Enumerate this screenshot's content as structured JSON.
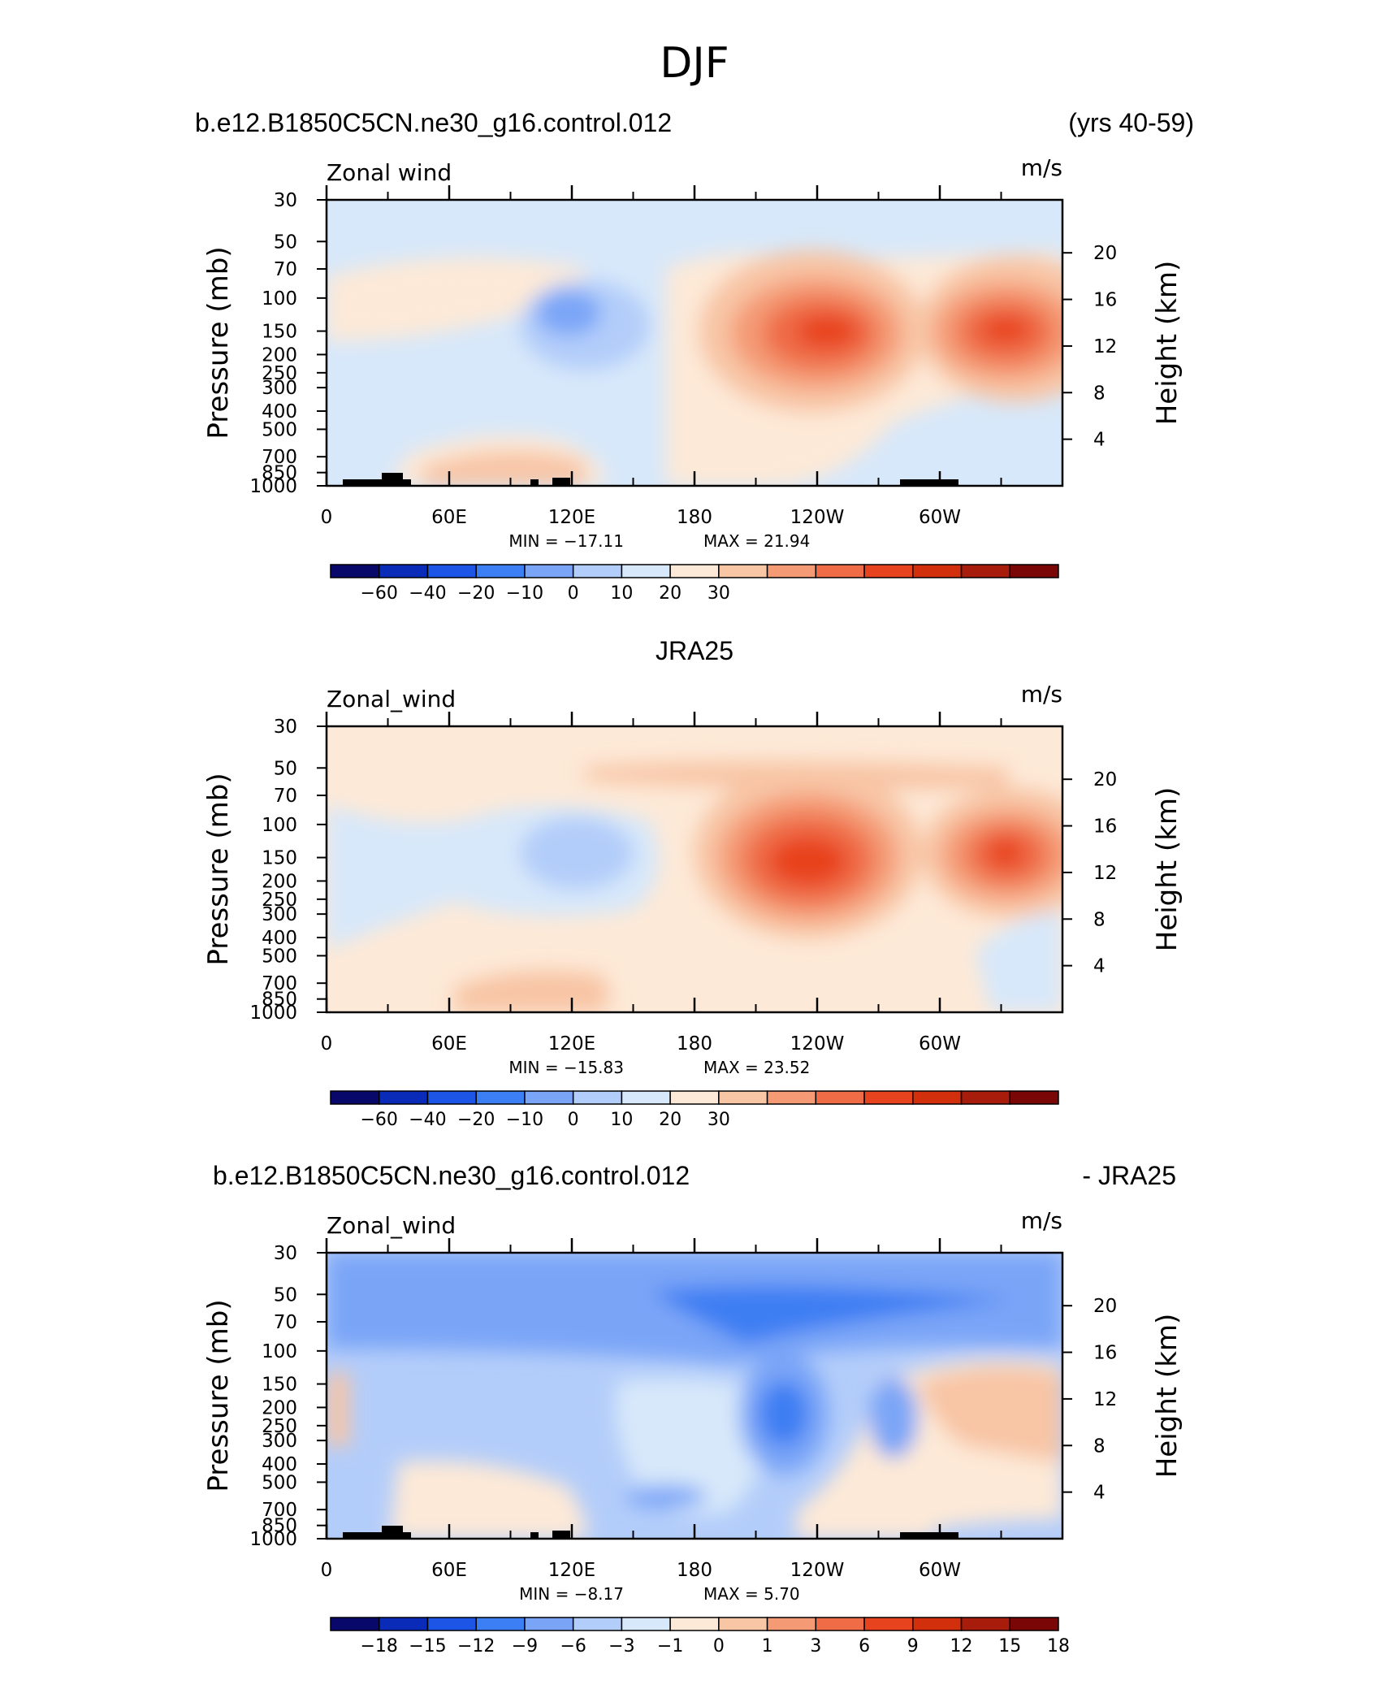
{
  "figure": {
    "title": "DJF"
  },
  "chart_data": [
    {
      "type": "heatmap",
      "panel_id": "panel1",
      "header_left": "b.e12.B1850C5CN.ne30_g16.control.012",
      "header_right": "(yrs 40-59)",
      "variable": "Zonal wind",
      "units": "m/s",
      "ylabel_left": "Pressure  (mb)",
      "ylabel_right": "Height  (km)",
      "x_ticks": [
        "0",
        "60E",
        "120E",
        "180",
        "120W",
        "60W"
      ],
      "y_ticks": [
        "30",
        "50",
        "70",
        "100",
        "150",
        "200",
        "250",
        "300",
        "400",
        "500",
        "700",
        "850",
        "1000"
      ],
      "y_ticks_right": [
        "20",
        "16",
        "12",
        "8",
        "4"
      ],
      "ylim": [
        1000,
        30
      ],
      "min_label": "MIN =  −17.11",
      "max_label": "MAX =   21.94",
      "min": -17.11,
      "max": 21.94,
      "colorbar_labels": [
        "−60",
        "−40",
        "−20",
        "−10",
        "0",
        "10",
        "20",
        "30"
      ],
      "features": [
        {
          "name": "westerly jet near 130W",
          "lon": 230,
          "p": 150,
          "value": 21.9
        },
        {
          "name": "westerly jet near 35W",
          "lon": 325,
          "p": 150,
          "value": 18.0
        },
        {
          "name": "easterly minimum near 110E",
          "lon": 112,
          "p": 120,
          "value": -17.1
        },
        {
          "name": "low-level westerlies near 100E",
          "lon": 100,
          "p": 750,
          "value": 4.0
        }
      ]
    },
    {
      "type": "heatmap",
      "panel_id": "panel2",
      "header_center": "JRA25",
      "variable": "Zonal_wind",
      "units": "m/s",
      "ylabel_left": "Pressure  (mb)",
      "ylabel_right": "Height  (km)",
      "x_ticks": [
        "0",
        "60E",
        "120E",
        "180",
        "120W",
        "60W"
      ],
      "y_ticks": [
        "30",
        "50",
        "70",
        "100",
        "150",
        "200",
        "250",
        "300",
        "400",
        "500",
        "700",
        "850",
        "1000"
      ],
      "y_ticks_right": [
        "20",
        "16",
        "12",
        "8",
        "4"
      ],
      "ylim": [
        1000,
        30
      ],
      "min_label": "MIN =  −15.83",
      "max_label": "MAX =   23.52",
      "min": -15.83,
      "max": 23.52,
      "colorbar_labels": [
        "−60",
        "−40",
        "−20",
        "−10",
        "0",
        "10",
        "20",
        "30"
      ],
      "features": [
        {
          "name": "westerly jet near 120W",
          "lon": 235,
          "p": 150,
          "value": 23.5
        },
        {
          "name": "westerly jet near 40W",
          "lon": 330,
          "p": 150,
          "value": 16.0
        },
        {
          "name": "easterly minimum near 115E",
          "lon": 115,
          "p": 150,
          "value": -15.8
        }
      ]
    },
    {
      "type": "heatmap",
      "panel_id": "panel3",
      "header_left": "b.e12.B1850C5CN.ne30_g16.control.012",
      "header_right": "- JRA25",
      "variable": "Zonal_wind",
      "units": "m/s",
      "ylabel_left": "Pressure  (mb)",
      "ylabel_right": "Height  (km)",
      "x_ticks": [
        "0",
        "60E",
        "120E",
        "180",
        "120W",
        "60W"
      ],
      "y_ticks": [
        "30",
        "50",
        "70",
        "100",
        "150",
        "200",
        "250",
        "300",
        "400",
        "500",
        "700",
        "850",
        "1000"
      ],
      "y_ticks_right": [
        "20",
        "16",
        "12",
        "8",
        "4"
      ],
      "ylim": [
        1000,
        30
      ],
      "min_label": "MIN =   −8.17",
      "max_label": "MAX =    5.70",
      "min": -8.17,
      "max": 5.7,
      "colorbar_labels": [
        "−18",
        "−15",
        "−12",
        "−9",
        "−6",
        "−3",
        "−1",
        "0",
        "1",
        "3",
        "6",
        "9",
        "12",
        "15",
        "18"
      ],
      "features": [
        {
          "name": "negative bias near 140W",
          "lon": 225,
          "p": 200,
          "value": -8.2
        },
        {
          "name": "negative bias near 80W",
          "lon": 275,
          "p": 200,
          "value": -5.0
        },
        {
          "name": "stratospheric negative bias",
          "lon": 200,
          "p": 50,
          "value": -6.0
        },
        {
          "name": "positive bias near 40W",
          "lon": 325,
          "p": 150,
          "value": 5.7
        }
      ]
    }
  ],
  "colors": {
    "cmap": [
      "#08086b",
      "#0a2ab8",
      "#1d55e6",
      "#3c7ef3",
      "#7aa5f7",
      "#b3cdfa",
      "#d7e8fa",
      "#fde9d7",
      "#f8c5a5",
      "#f49a75",
      "#ef6c47",
      "#e8431f",
      "#d22f0c",
      "#a71c0a",
      "#7a0606"
    ],
    "cmap_diff": [
      "#08086b",
      "#0a2ab8",
      "#1d55e6",
      "#3c7ef3",
      "#7aa5f7",
      "#b3cdfa",
      "#d7e8fa",
      "#fde9d7",
      "#f8c5a5",
      "#f49a75",
      "#ef6c47",
      "#e8431f",
      "#d22f0c",
      "#a71c0a",
      "#7a0606"
    ],
    "topography": "#000000"
  }
}
